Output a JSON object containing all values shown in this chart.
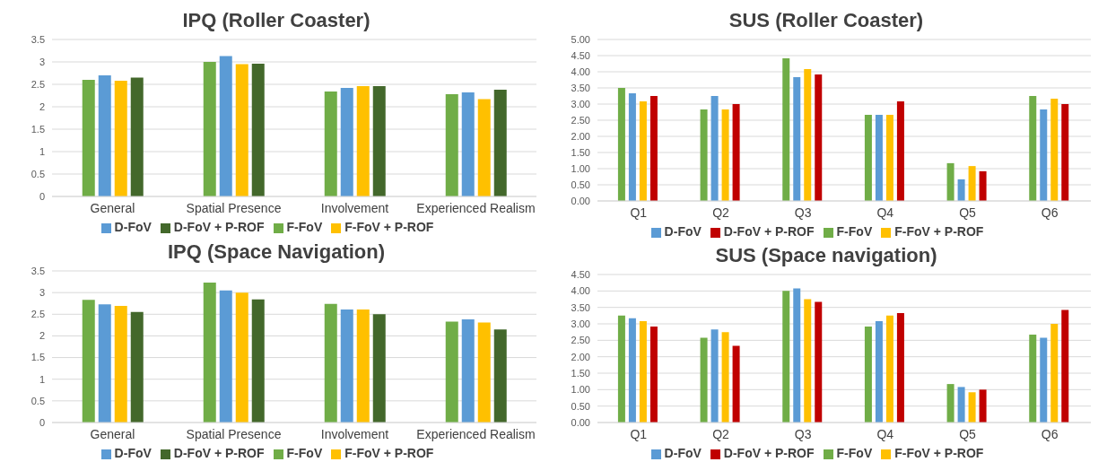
{
  "chart_data": [
    {
      "type": "bar",
      "title": "IPQ (Roller Coaster)",
      "categories": [
        "General",
        "Spatial Presence",
        "Involvement",
        "Experienced Realism"
      ],
      "series": [
        {
          "name": "F-FoV",
          "color": "#70ad47",
          "values": [
            2.6,
            3.0,
            2.34,
            2.28
          ]
        },
        {
          "name": "D-FoV",
          "color": "#5b9bd5",
          "values": [
            2.7,
            3.13,
            2.42,
            2.32
          ]
        },
        {
          "name": "F-FoV + P-ROF",
          "color": "#ffc000",
          "values": [
            2.58,
            2.95,
            2.46,
            2.17
          ]
        },
        {
          "name": "D-FoV + P-ROF",
          "color": "#43682b",
          "values": [
            2.65,
            2.96,
            2.46,
            2.38
          ]
        }
      ],
      "ylim": [
        0,
        3.5
      ],
      "yticks": [
        0,
        0.5,
        1,
        1.5,
        2,
        2.5,
        3,
        3.5
      ],
      "grid": "y",
      "legend": "bottom"
    },
    {
      "type": "bar",
      "title": "IPQ (Space Navigation)",
      "categories": [
        "General",
        "Spatial Presence",
        "Involvement",
        "Experienced Realism"
      ],
      "series": [
        {
          "name": "F-FoV",
          "color": "#70ad47",
          "values": [
            2.83,
            3.23,
            2.74,
            2.33
          ]
        },
        {
          "name": "D-FoV",
          "color": "#5b9bd5",
          "values": [
            2.73,
            3.05,
            2.61,
            2.38
          ]
        },
        {
          "name": "F-FoV + P-ROF",
          "color": "#ffc000",
          "values": [
            2.69,
            3.0,
            2.61,
            2.31
          ]
        },
        {
          "name": "D-FoV + P-ROF",
          "color": "#43682b",
          "values": [
            2.55,
            2.84,
            2.5,
            2.15
          ]
        }
      ],
      "ylim": [
        0,
        3.5
      ],
      "yticks": [
        0,
        0.5,
        1,
        1.5,
        2,
        2.5,
        3,
        3.5
      ],
      "grid": "y",
      "legend": "bottom"
    },
    {
      "type": "bar",
      "title": "SUS (Roller Coaster)",
      "categories": [
        "Q1",
        "Q2",
        "Q3",
        "Q4",
        "Q5",
        "Q6"
      ],
      "series": [
        {
          "name": "F-FoV",
          "color": "#70ad47",
          "values": [
            3.5,
            2.83,
            4.42,
            2.67,
            1.17,
            3.25
          ]
        },
        {
          "name": "D-FoV",
          "color": "#5b9bd5",
          "values": [
            3.33,
            3.25,
            3.83,
            2.67,
            0.67,
            2.83
          ]
        },
        {
          "name": "F-FoV + P-ROF",
          "color": "#ffc000",
          "values": [
            3.08,
            2.83,
            4.08,
            2.67,
            1.08,
            3.17
          ]
        },
        {
          "name": "D-FoV + P-ROF",
          "color": "#c00000",
          "values": [
            3.25,
            3.0,
            3.92,
            3.08,
            0.92,
            3.0
          ]
        }
      ],
      "ylim": [
        0,
        5
      ],
      "yticks": [
        {
          "value": 0,
          "label": "0.00"
        },
        {
          "value": 0.5,
          "label": "0.50"
        },
        {
          "value": 1,
          "label": "1.00"
        },
        {
          "value": 1.5,
          "label": "1.50"
        },
        {
          "value": 2,
          "label": "2.00"
        },
        {
          "value": 2.5,
          "label": "2.50"
        },
        {
          "value": 3,
          "label": "3.00"
        },
        {
          "value": 3.5,
          "label": "3.50"
        },
        {
          "value": 4,
          "label": "4.00"
        },
        {
          "value": 4.5,
          "label": "4.50"
        },
        {
          "value": 5,
          "label": "5.00"
        }
      ],
      "grid": "y",
      "legend": "bottom"
    },
    {
      "type": "bar",
      "title": "SUS (Space navigation)",
      "categories": [
        "Q1",
        "Q2",
        "Q3",
        "Q4",
        "Q5",
        "Q6"
      ],
      "series": [
        {
          "name": "F-FoV",
          "color": "#70ad47",
          "values": [
            3.25,
            2.58,
            4.0,
            2.92,
            1.17,
            2.67
          ]
        },
        {
          "name": "D-FoV",
          "color": "#5b9bd5",
          "values": [
            3.17,
            2.83,
            4.08,
            3.08,
            1.08,
            2.58
          ]
        },
        {
          "name": "F-FoV + P-ROF",
          "color": "#ffc000",
          "values": [
            3.08,
            2.75,
            3.75,
            3.25,
            0.92,
            3.0
          ]
        },
        {
          "name": "D-FoV + P-ROF",
          "color": "#c00000",
          "values": [
            2.92,
            2.33,
            3.67,
            3.33,
            1.0,
            3.42
          ]
        }
      ],
      "ylim": [
        0,
        4.5
      ],
      "yticks": [
        {
          "value": 0,
          "label": "0.00"
        },
        {
          "value": 0.5,
          "label": "0.50"
        },
        {
          "value": 1,
          "label": "1.00"
        },
        {
          "value": 1.5,
          "label": "1.50"
        },
        {
          "value": 2,
          "label": "2.00"
        },
        {
          "value": 2.5,
          "label": "2.50"
        },
        {
          "value": 3,
          "label": "3.00"
        },
        {
          "value": 3.5,
          "label": "3.50"
        },
        {
          "value": 4,
          "label": "4.00"
        },
        {
          "value": 4.5,
          "label": "4.50"
        }
      ],
      "grid": "y",
      "legend": "bottom"
    }
  ]
}
